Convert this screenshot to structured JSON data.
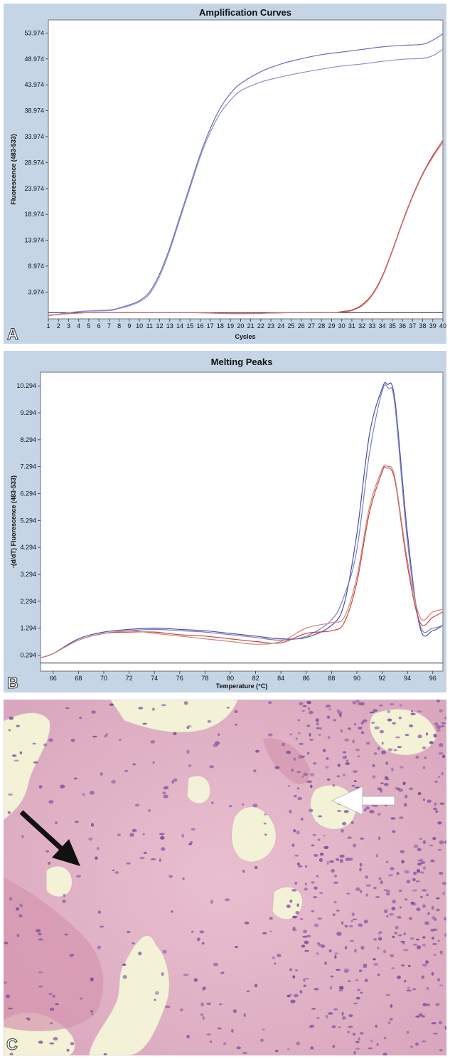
{
  "panels": [
    {
      "letter": "A"
    },
    {
      "letter": "B"
    },
    {
      "letter": "C"
    }
  ],
  "chart_data": [
    {
      "type": "line",
      "title": "Amplification Curves",
      "xlabel": "Cycles",
      "ylabel": "Fluorescence (483-533)",
      "xlim": [
        1,
        40
      ],
      "ylim": [
        -1.2,
        56.5
      ],
      "xticks": [
        1,
        2,
        3,
        4,
        5,
        6,
        7,
        8,
        9,
        10,
        11,
        12,
        13,
        14,
        15,
        16,
        17,
        18,
        19,
        20,
        21,
        22,
        23,
        24,
        25,
        26,
        27,
        28,
        29,
        30,
        31,
        32,
        33,
        34,
        35,
        36,
        37,
        38,
        39,
        40
      ],
      "yticks": [
        3.974,
        8.974,
        13.974,
        18.974,
        23.974,
        28.974,
        33.974,
        38.974,
        43.974,
        48.974,
        53.974
      ],
      "yticklabels": [
        "3.974",
        "8.974",
        "13.974",
        "18.974",
        "23.974",
        "28.974",
        "33.974",
        "38.974",
        "43.974",
        "48.974",
        "53.974"
      ],
      "threshold": 0,
      "grid": false,
      "series": [
        {
          "color": "#6b6fb8",
          "x": [
            1,
            4,
            7,
            8,
            9,
            10,
            11,
            12,
            13,
            14,
            15,
            16,
            17,
            18,
            19,
            20,
            22,
            24,
            26,
            28,
            30,
            32,
            34,
            36,
            38,
            39,
            40
          ],
          "y": [
            -0.6,
            0.2,
            0.5,
            0.9,
            1.5,
            2.3,
            4.0,
            7.5,
            12.5,
            18.5,
            24.5,
            30.5,
            35.5,
            39.5,
            42.3,
            44.2,
            46.5,
            48.0,
            49.0,
            49.8,
            50.3,
            50.8,
            51.3,
            51.6,
            51.8,
            52.6,
            53.8
          ]
        },
        {
          "color": "#8a8fc8",
          "x": [
            1,
            4,
            7,
            8,
            9,
            10,
            11,
            12,
            13,
            14,
            15,
            16,
            17,
            18,
            19,
            20,
            22,
            24,
            26,
            28,
            30,
            32,
            34,
            36,
            38,
            39,
            40
          ],
          "y": [
            -0.6,
            0.2,
            0.4,
            0.8,
            1.3,
            2.1,
            3.6,
            7.0,
            12.0,
            18.0,
            24.0,
            30.0,
            34.8,
            38.5,
            41.0,
            42.8,
            44.5,
            45.5,
            46.3,
            47.0,
            47.6,
            48.0,
            48.5,
            48.9,
            49.1,
            49.6,
            50.8
          ]
        },
        {
          "color": "#c83030",
          "x": [
            1,
            5,
            10,
            15,
            20,
            25,
            29,
            30,
            31,
            32,
            33,
            34,
            35,
            36,
            37,
            38,
            39,
            40
          ],
          "y": [
            -0.5,
            0.0,
            0.0,
            0.0,
            -0.2,
            0.0,
            0.0,
            0.2,
            0.5,
            1.5,
            3.5,
            7.0,
            12.0,
            17.5,
            22.5,
            26.8,
            30.3,
            33.2
          ]
        },
        {
          "color": "#c87878",
          "x": [
            1,
            5,
            10,
            15,
            20,
            25,
            29,
            30,
            31,
            32,
            33,
            34,
            35,
            36,
            37,
            38,
            39,
            40
          ],
          "y": [
            -0.5,
            0.0,
            0.0,
            0.0,
            -0.2,
            0.0,
            0.0,
            0.1,
            0.4,
            1.3,
            3.3,
            6.8,
            11.8,
            17.3,
            22.3,
            26.6,
            30.0,
            32.8
          ]
        }
      ]
    },
    {
      "type": "line",
      "title": "Melting Peaks",
      "xlabel": "Temperature (°C)",
      "ylabel": "-(d/dT) Fluorescence (483-533)",
      "xlim": [
        65,
        96.8
      ],
      "ylim": [
        -0.3,
        10.8
      ],
      "xticks": [
        66,
        68,
        70,
        72,
        74,
        76,
        78,
        80,
        82,
        84,
        86,
        88,
        90,
        92,
        94,
        96
      ],
      "yticks": [
        0.294,
        1.294,
        2.294,
        3.294,
        4.294,
        5.294,
        6.294,
        7.294,
        8.294,
        9.294,
        10.294
      ],
      "yticklabels": [
        "0.294",
        "1.294",
        "2.294",
        "3.294",
        "4.294",
        "5.294",
        "6.294",
        "7.294",
        "8.294",
        "9.294",
        "10.294"
      ],
      "threshold": 0,
      "grid": false,
      "series": [
        {
          "color": "#4a4ea8",
          "x": [
            65,
            66,
            68,
            70,
            72,
            74,
            76,
            78,
            80,
            82,
            84,
            86,
            88,
            89,
            90,
            91,
            92,
            92.4,
            93,
            94,
            95,
            96,
            96.8
          ],
          "y": [
            0.2,
            0.35,
            0.9,
            1.15,
            1.25,
            1.3,
            1.25,
            1.2,
            1.1,
            1.0,
            0.9,
            0.95,
            1.4,
            2.2,
            4.8,
            8.5,
            10.2,
            10.35,
            9.8,
            4.8,
            1.3,
            1.2,
            1.4
          ]
        },
        {
          "color": "#7a7ec0",
          "x": [
            65,
            66,
            68,
            70,
            72,
            74,
            76,
            78,
            80,
            82,
            84,
            86,
            88,
            89,
            90,
            91,
            92,
            92.5,
            93,
            94,
            95,
            96,
            96.8
          ],
          "y": [
            0.2,
            0.35,
            0.85,
            1.1,
            1.2,
            1.25,
            1.2,
            1.15,
            1.05,
            0.95,
            0.85,
            1.0,
            1.6,
            2.5,
            4.2,
            7.8,
            10.1,
            10.2,
            9.6,
            4.5,
            1.4,
            1.3,
            1.4
          ]
        },
        {
          "color": "#d04040",
          "x": [
            65,
            66,
            68,
            70,
            72,
            74,
            76,
            78,
            80,
            82,
            84,
            86,
            88,
            89,
            90,
            91,
            92,
            92.3,
            93,
            94,
            95,
            96,
            96.8
          ],
          "y": [
            0.2,
            0.35,
            0.85,
            1.1,
            1.15,
            1.15,
            1.05,
            1.0,
            0.9,
            0.8,
            0.75,
            1.1,
            1.2,
            1.5,
            3.0,
            5.6,
            7.1,
            7.25,
            6.8,
            3.6,
            1.5,
            1.7,
            1.9
          ]
        },
        {
          "color": "#c88a7a",
          "x": [
            65,
            66,
            68,
            70,
            72,
            74,
            76,
            78,
            80,
            82,
            84,
            86,
            88,
            89,
            90,
            91,
            92,
            92.4,
            93,
            94,
            95,
            96,
            96.8
          ],
          "y": [
            0.2,
            0.35,
            0.85,
            1.1,
            1.2,
            1.1,
            1.0,
            0.9,
            0.8,
            0.7,
            0.8,
            1.3,
            1.5,
            1.7,
            3.2,
            5.8,
            7.2,
            7.3,
            6.9,
            3.8,
            1.7,
            1.9,
            2.0
          ]
        }
      ]
    }
  ],
  "colors": {
    "panel_bg": "#c5d5e6",
    "plot_bg": "#ffffff",
    "tissue_bg": "#e5b6c8"
  }
}
